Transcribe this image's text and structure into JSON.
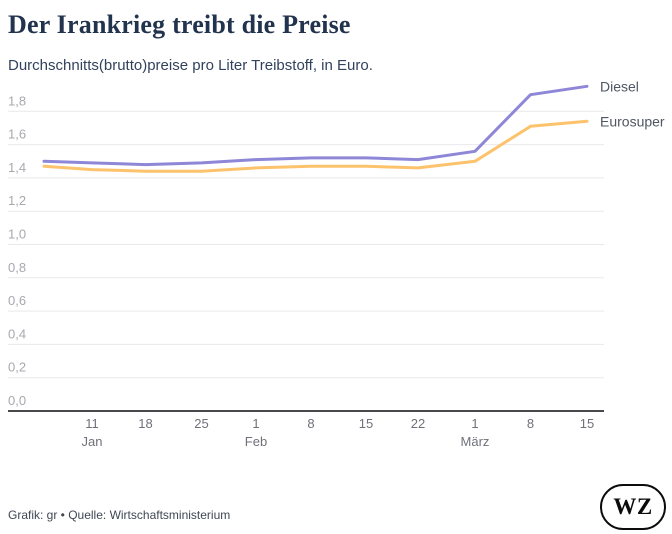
{
  "header": {
    "title": "Der Irankrieg treibt die Preise",
    "subtitle": "Durchschnitts(brutto)preise pro Liter Treibstoff, in Euro."
  },
  "chart_data": {
    "type": "line",
    "categories": [
      "",
      "11. Jan",
      "18. Jan",
      "25. Jan",
      "1. Feb",
      "8. Feb",
      "15. Feb",
      "22. Feb",
      "1. März",
      "8. März",
      "15. März"
    ],
    "series": [
      {
        "name": "Diesel",
        "color": "#8e87d8",
        "values": [
          1.5,
          1.49,
          1.48,
          1.49,
          1.51,
          1.52,
          1.52,
          1.51,
          1.56,
          1.9,
          1.95
        ]
      },
      {
        "name": "Eurosuper",
        "color": "#fcc36c",
        "values": [
          1.47,
          1.45,
          1.44,
          1.44,
          1.46,
          1.47,
          1.47,
          1.46,
          1.5,
          1.71,
          1.74
        ]
      }
    ],
    "title": "Der Irankrieg treibt die Preise",
    "subtitle": "Durchschnitts(brutto)preise pro Liter Treibstoff, in Euro.",
    "xlabel": "",
    "ylabel": "",
    "ylim": [
      0,
      2.0
    ],
    "grid": true,
    "legend_position": "right-of-line-ends",
    "y_tick_labels": [
      "1,8",
      "1,6",
      "1,4",
      "1,2",
      "1,0",
      "0,8",
      "0,6",
      "0,4",
      "0,2",
      "0,0"
    ],
    "x_tick_labels": [
      "11",
      "18",
      "25",
      "1",
      "8",
      "15",
      "22",
      "1",
      "8",
      "15"
    ],
    "month_labels": [
      {
        "text": "Jan",
        "tick_index": 0
      },
      {
        "text": "Feb",
        "tick_index": 3
      },
      {
        "text": "März",
        "tick_index": 7
      }
    ]
  },
  "colors": {
    "diesel": "#8e87d8",
    "eurosuper": "#fcc36c",
    "gridline": "#e9e9ec",
    "baseline": "#47494d",
    "y_tick_text": "#a8a8b0",
    "x_tick_text": "#70707a",
    "legend_text": "#4e5763",
    "title_text": "#22334e"
  },
  "footer": {
    "credit": "Grafik: gr • Quelle: Wirtschaftsministerium",
    "logo": "WZ"
  }
}
